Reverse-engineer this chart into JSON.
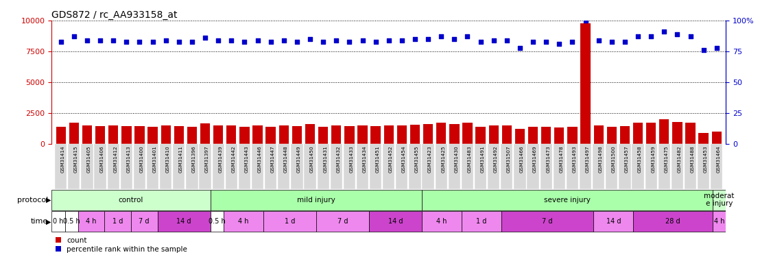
{
  "title": "GDS872 / rc_AA933158_at",
  "samples": [
    "GSM31414",
    "GSM31415",
    "GSM31405",
    "GSM31406",
    "GSM31412",
    "GSM31413",
    "GSM31400",
    "GSM31401",
    "GSM31410",
    "GSM31411",
    "GSM31396",
    "GSM31397",
    "GSM31439",
    "GSM31442",
    "GSM31443",
    "GSM31446",
    "GSM31447",
    "GSM31448",
    "GSM31449",
    "GSM31450",
    "GSM31431",
    "GSM31432",
    "GSM31433",
    "GSM31434",
    "GSM31451",
    "GSM31452",
    "GSM31454",
    "GSM31455",
    "GSM31423",
    "GSM31425",
    "GSM31430",
    "GSM31483",
    "GSM31491",
    "GSM31492",
    "GSM31507",
    "GSM31466",
    "GSM31469",
    "GSM31473",
    "GSM31478",
    "GSM31493",
    "GSM31497",
    "GSM31498",
    "GSM31500",
    "GSM31457",
    "GSM31458",
    "GSM31459",
    "GSM31475",
    "GSM31482",
    "GSM31488",
    "GSM31453",
    "GSM31464"
  ],
  "bar_values": [
    1400,
    1700,
    1500,
    1450,
    1500,
    1450,
    1450,
    1400,
    1500,
    1450,
    1400,
    1650,
    1500,
    1500,
    1400,
    1500,
    1400,
    1500,
    1450,
    1600,
    1400,
    1500,
    1450,
    1500,
    1450,
    1500,
    1500,
    1550,
    1600,
    1700,
    1600,
    1700,
    1400,
    1500,
    1500,
    1200,
    1400,
    1400,
    1350,
    1400,
    9800,
    1500,
    1400,
    1450,
    1700,
    1700,
    2000,
    1800,
    1700,
    900,
    1000
  ],
  "scatter_values": [
    83,
    87,
    84,
    84,
    84,
    83,
    83,
    83,
    84,
    83,
    83,
    86,
    84,
    84,
    83,
    84,
    83,
    84,
    83,
    85,
    83,
    84,
    83,
    84,
    83,
    84,
    84,
    85,
    85,
    87,
    85,
    87,
    83,
    84,
    84,
    78,
    83,
    83,
    81,
    83,
    100,
    84,
    83,
    83,
    87,
    87,
    91,
    89,
    87,
    76,
    78
  ],
  "protocol_groups": [
    {
      "label": "control",
      "start": 0,
      "end": 12,
      "color": "#ccffcc"
    },
    {
      "label": "mild injury",
      "start": 12,
      "end": 28,
      "color": "#aaffaa"
    },
    {
      "label": "severe injury",
      "start": 28,
      "end": 50,
      "color": "#aaffaa"
    },
    {
      "label": "moderat\ne injury",
      "start": 50,
      "end": 51,
      "color": "#ccffcc"
    }
  ],
  "time_groups": [
    {
      "label": "0 h",
      "start": 0,
      "end": 1,
      "color": "#ffffff"
    },
    {
      "label": "0.5 h",
      "start": 1,
      "end": 2,
      "color": "#ffffff"
    },
    {
      "label": "4 h",
      "start": 2,
      "end": 4,
      "color": "#ee88ee"
    },
    {
      "label": "1 d",
      "start": 4,
      "end": 6,
      "color": "#ee88ee"
    },
    {
      "label": "7 d",
      "start": 6,
      "end": 8,
      "color": "#ee88ee"
    },
    {
      "label": "14 d",
      "start": 8,
      "end": 12,
      "color": "#cc44cc"
    },
    {
      "label": "0.5 h",
      "start": 12,
      "end": 13,
      "color": "#ffffff"
    },
    {
      "label": "4 h",
      "start": 13,
      "end": 16,
      "color": "#ee88ee"
    },
    {
      "label": "1 d",
      "start": 16,
      "end": 20,
      "color": "#ee88ee"
    },
    {
      "label": "7 d",
      "start": 20,
      "end": 24,
      "color": "#ee88ee"
    },
    {
      "label": "14 d",
      "start": 24,
      "end": 28,
      "color": "#cc44cc"
    },
    {
      "label": "4 h",
      "start": 28,
      "end": 31,
      "color": "#ee88ee"
    },
    {
      "label": "1 d",
      "start": 31,
      "end": 34,
      "color": "#ee88ee"
    },
    {
      "label": "7 d",
      "start": 34,
      "end": 41,
      "color": "#cc44cc"
    },
    {
      "label": "14 d",
      "start": 41,
      "end": 44,
      "color": "#ee88ee"
    },
    {
      "label": "28 d",
      "start": 44,
      "end": 50,
      "color": "#cc44cc"
    },
    {
      "label": "4 h",
      "start": 50,
      "end": 51,
      "color": "#ee88ee"
    }
  ],
  "bar_color": "#cc0000",
  "scatter_color": "#0000cc",
  "ylim_left": [
    0,
    10000
  ],
  "ylim_right": [
    0,
    100
  ],
  "yticks_left": [
    0,
    2500,
    5000,
    7500,
    10000
  ],
  "yticks_right": [
    0,
    25,
    50,
    75,
    100
  ],
  "background_color": "#ffffff",
  "title_fontsize": 10,
  "axis_label_color_left": "#cc0000",
  "axis_label_color_right": "#0000cc"
}
